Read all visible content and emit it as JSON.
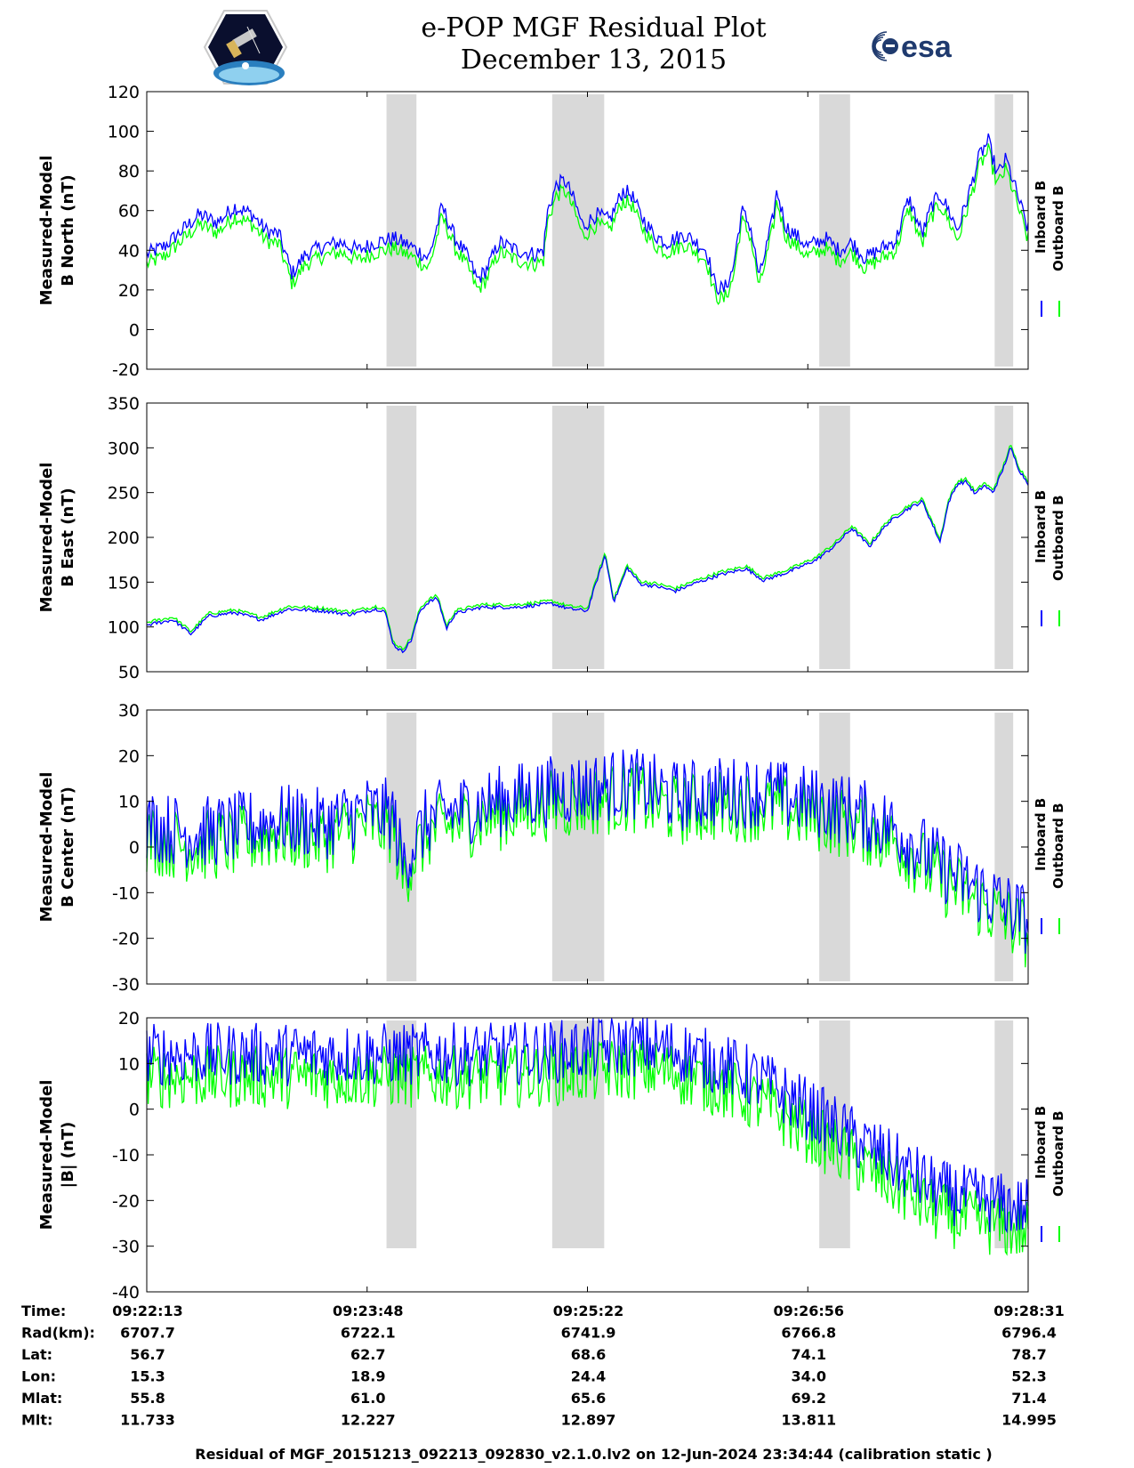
{
  "header": {
    "title_line1": "e-POP MGF Residual Plot",
    "title_line2": "December 13, 2015",
    "mission_logo_icon": "satellite-mission-patch-icon",
    "esa_logo_text": "esa"
  },
  "colors": {
    "inboard": "#0000ff",
    "outboard": "#00ff00",
    "shade": "#d9d9d9"
  },
  "chart_data": [
    {
      "type": "line",
      "ylabel_line1": "Measured-Model",
      "ylabel_line2": "B North (nT)",
      "ylim": [
        -20,
        120
      ],
      "yticks": [
        -20,
        0,
        20,
        40,
        60,
        80,
        100,
        120
      ],
      "legend": [
        "Inboard B",
        "Outboard B"
      ],
      "noise": 4,
      "outboard_offset": -5,
      "inboard": [
        [
          0,
          38
        ],
        [
          0.02,
          42
        ],
        [
          0.04,
          50
        ],
        [
          0.06,
          58
        ],
        [
          0.08,
          54
        ],
        [
          0.1,
          62
        ],
        [
          0.12,
          58
        ],
        [
          0.135,
          50
        ],
        [
          0.15,
          48
        ],
        [
          0.165,
          28
        ],
        [
          0.18,
          38
        ],
        [
          0.2,
          42
        ],
        [
          0.22,
          44
        ],
        [
          0.24,
          40
        ],
        [
          0.26,
          44
        ],
        [
          0.28,
          46
        ],
        [
          0.3,
          42
        ],
        [
          0.32,
          36
        ],
        [
          0.335,
          62
        ],
        [
          0.35,
          46
        ],
        [
          0.365,
          36
        ],
        [
          0.375,
          25
        ],
        [
          0.385,
          30
        ],
        [
          0.4,
          44
        ],
        [
          0.42,
          40
        ],
        [
          0.44,
          38
        ],
        [
          0.45,
          40
        ],
        [
          0.455,
          60
        ],
        [
          0.465,
          73
        ],
        [
          0.475,
          75
        ],
        [
          0.485,
          65
        ],
        [
          0.495,
          52
        ],
        [
          0.51,
          58
        ],
        [
          0.525,
          55
        ],
        [
          0.54,
          70
        ],
        [
          0.55,
          68
        ],
        [
          0.56,
          58
        ],
        [
          0.575,
          48
        ],
        [
          0.59,
          44
        ],
        [
          0.61,
          48
        ],
        [
          0.62,
          45
        ],
        [
          0.635,
          40
        ],
        [
          0.645,
          22
        ],
        [
          0.655,
          20
        ],
        [
          0.665,
          30
        ],
        [
          0.675,
          60
        ],
        [
          0.685,
          52
        ],
        [
          0.695,
          26
        ],
        [
          0.71,
          55
        ],
        [
          0.715,
          70
        ],
        [
          0.725,
          52
        ],
        [
          0.735,
          48
        ],
        [
          0.75,
          42
        ],
        [
          0.77,
          46
        ],
        [
          0.785,
          40
        ],
        [
          0.8,
          44
        ],
        [
          0.815,
          36
        ],
        [
          0.83,
          40
        ],
        [
          0.85,
          45
        ],
        [
          0.86,
          60
        ],
        [
          0.865,
          66
        ],
        [
          0.875,
          54
        ],
        [
          0.88,
          48
        ],
        [
          0.89,
          62
        ],
        [
          0.9,
          68
        ],
        [
          0.91,
          60
        ],
        [
          0.92,
          50
        ],
        [
          0.935,
          72
        ],
        [
          0.945,
          88
        ],
        [
          0.955,
          95
        ],
        [
          0.965,
          78
        ],
        [
          0.975,
          86
        ],
        [
          0.985,
          72
        ],
        [
          1.0,
          50
        ]
      ],
      "x_fraction_note": ""
    },
    {
      "type": "line",
      "ylabel_line1": "Measured-Model",
      "ylabel_line2": "B East (nT)",
      "ylim": [
        50,
        350
      ],
      "yticks": [
        50,
        100,
        150,
        200,
        250,
        300,
        350
      ],
      "legend": [
        "Inboard B",
        "Outboard B"
      ],
      "noise": 2,
      "outboard_offset": 3,
      "inboard": [
        [
          0,
          102
        ],
        [
          0.03,
          108
        ],
        [
          0.05,
          92
        ],
        [
          0.07,
          112
        ],
        [
          0.1,
          116
        ],
        [
          0.13,
          108
        ],
        [
          0.16,
          120
        ],
        [
          0.2,
          118
        ],
        [
          0.23,
          114
        ],
        [
          0.26,
          120
        ],
        [
          0.27,
          118
        ],
        [
          0.28,
          80
        ],
        [
          0.29,
          72
        ],
        [
          0.3,
          85
        ],
        [
          0.31,
          118
        ],
        [
          0.32,
          128
        ],
        [
          0.33,
          132
        ],
        [
          0.34,
          98
        ],
        [
          0.35,
          115
        ],
        [
          0.38,
          122
        ],
        [
          0.42,
          122
        ],
        [
          0.46,
          126
        ],
        [
          0.48,
          120
        ],
        [
          0.5,
          118
        ],
        [
          0.51,
          150
        ],
        [
          0.52,
          180
        ],
        [
          0.53,
          128
        ],
        [
          0.545,
          166
        ],
        [
          0.56,
          148
        ],
        [
          0.58,
          145
        ],
        [
          0.6,
          140
        ],
        [
          0.62,
          148
        ],
        [
          0.65,
          158
        ],
        [
          0.68,
          165
        ],
        [
          0.7,
          152
        ],
        [
          0.73,
          162
        ],
        [
          0.76,
          175
        ],
        [
          0.78,
          190
        ],
        [
          0.8,
          210
        ],
        [
          0.82,
          190
        ],
        [
          0.84,
          215
        ],
        [
          0.86,
          230
        ],
        [
          0.88,
          240
        ],
        [
          0.9,
          195
        ],
        [
          0.91,
          240
        ],
        [
          0.92,
          260
        ],
        [
          0.93,
          262
        ],
        [
          0.94,
          248
        ],
        [
          0.95,
          258
        ],
        [
          0.96,
          250
        ],
        [
          0.97,
          272
        ],
        [
          0.98,
          300
        ],
        [
          0.99,
          275
        ],
        [
          1.0,
          260
        ]
      ]
    },
    {
      "type": "line",
      "ylabel_line1": "Measured-Model",
      "ylabel_line2": "B Center (nT)",
      "ylim": [
        -30,
        30
      ],
      "yticks": [
        -30,
        -20,
        -10,
        0,
        10,
        20,
        30
      ],
      "legend": [
        "Inboard B",
        "Outboard B"
      ],
      "noise": 8,
      "outboard_offset": -3,
      "inboard": [
        [
          0,
          5
        ],
        [
          0.05,
          3
        ],
        [
          0.1,
          4
        ],
        [
          0.15,
          6
        ],
        [
          0.2,
          5
        ],
        [
          0.25,
          8
        ],
        [
          0.28,
          7
        ],
        [
          0.29,
          -4
        ],
        [
          0.3,
          0
        ],
        [
          0.32,
          6
        ],
        [
          0.35,
          8
        ],
        [
          0.4,
          10
        ],
        [
          0.45,
          12
        ],
        [
          0.5,
          13
        ],
        [
          0.55,
          14
        ],
        [
          0.6,
          11
        ],
        [
          0.65,
          12
        ],
        [
          0.7,
          12
        ],
        [
          0.75,
          10
        ],
        [
          0.8,
          8
        ],
        [
          0.85,
          4
        ],
        [
          0.9,
          -4
        ],
        [
          0.95,
          -10
        ],
        [
          1.0,
          -16
        ]
      ]
    },
    {
      "type": "line",
      "ylabel_line1": "Measured-Model",
      "ylabel_line2": "|B| (nT)",
      "ylim": [
        -40,
        20
      ],
      "yticks": [
        -40,
        -30,
        -20,
        -10,
        0,
        10,
        20
      ],
      "legend": [
        "Inboard B",
        "Outboard B"
      ],
      "noise": 7,
      "outboard_offset": -5,
      "inboard": [
        [
          0,
          12
        ],
        [
          0.1,
          12
        ],
        [
          0.2,
          12
        ],
        [
          0.3,
          12
        ],
        [
          0.4,
          12
        ],
        [
          0.5,
          13
        ],
        [
          0.55,
          14
        ],
        [
          0.6,
          13
        ],
        [
          0.65,
          10
        ],
        [
          0.7,
          6
        ],
        [
          0.75,
          0
        ],
        [
          0.8,
          -6
        ],
        [
          0.85,
          -12
        ],
        [
          0.9,
          -18
        ],
        [
          0.95,
          -20
        ],
        [
          1.0,
          -22
        ]
      ]
    }
  ],
  "shaded_intervals": [
    [
      0.272,
      0.306
    ],
    [
      0.46,
      0.519
    ],
    [
      0.763,
      0.798
    ],
    [
      0.962,
      0.983
    ]
  ],
  "x_ticks": {
    "Time:": [
      "09:22:13",
      "09:23:48",
      "09:25:22",
      "09:26:56",
      "09:28:31"
    ],
    "Rad(km):": [
      "6707.7",
      "6722.1",
      "6741.9",
      "6766.8",
      "6796.4"
    ],
    "Lat:": [
      "56.7",
      "62.7",
      "68.6",
      "74.1",
      "78.7"
    ],
    "Lon:": [
      "15.3",
      "18.9",
      "24.4",
      "34.0",
      "52.3"
    ],
    "Mlat:": [
      "55.8",
      "61.0",
      "65.6",
      "69.2",
      "71.4"
    ],
    "Mlt:": [
      "11.733",
      "12.227",
      "12.897",
      "13.811",
      "14.995"
    ]
  },
  "row_labels": [
    "Time:",
    "Rad(km):",
    "Lat:",
    "Lon:",
    "Mlat:",
    "Mlt:"
  ],
  "footer": "Residual of MGF_20151213_092213_092830_v2.1.0.lv2 on 12-Jun-2024 23:34:44 (calibration static )"
}
